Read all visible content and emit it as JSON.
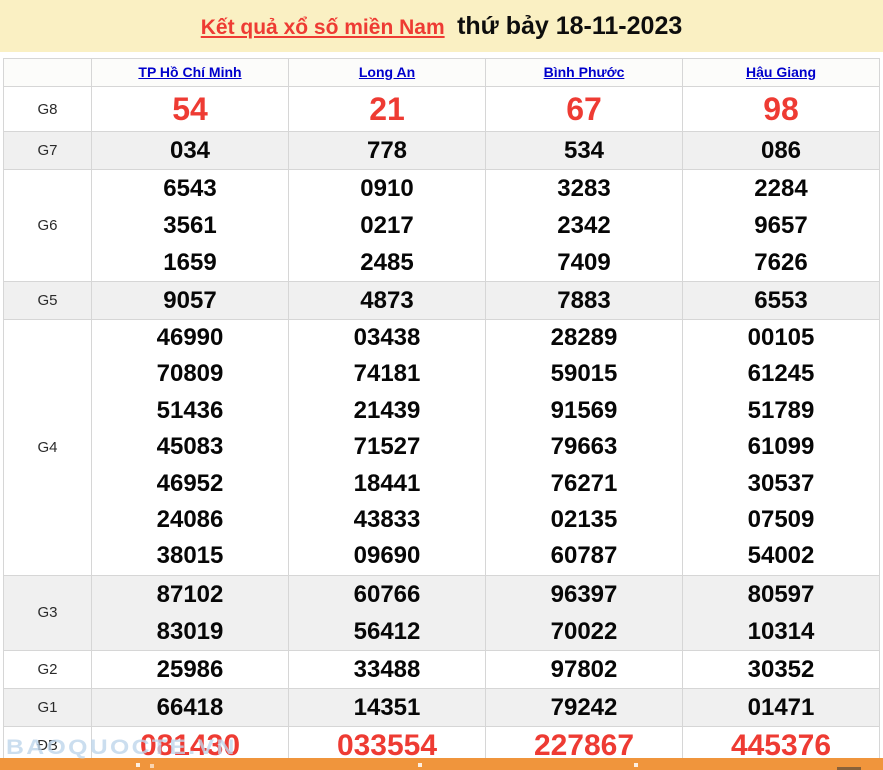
{
  "banner": {
    "title_link": "Kết quả xổ số miền Nam",
    "title_date": "thứ bảy 18-11-2023"
  },
  "table": {
    "columns": [
      "TP Hồ Chí Minh",
      "Long An",
      "Bình Phước",
      "Hậu Giang"
    ],
    "rows": [
      {
        "key": "G8",
        "label": "G8",
        "values": [
          [
            "54"
          ],
          [
            "21"
          ],
          [
            "67"
          ],
          [
            "98"
          ]
        ]
      },
      {
        "key": "G7",
        "label": "G7",
        "values": [
          [
            "034"
          ],
          [
            "778"
          ],
          [
            "534"
          ],
          [
            "086"
          ]
        ]
      },
      {
        "key": "G6",
        "label": "G6",
        "values": [
          [
            "6543",
            "3561",
            "1659"
          ],
          [
            "0910",
            "0217",
            "2485"
          ],
          [
            "3283",
            "2342",
            "7409"
          ],
          [
            "2284",
            "9657",
            "7626"
          ]
        ]
      },
      {
        "key": "G5",
        "label": "G5",
        "values": [
          [
            "9057"
          ],
          [
            "4873"
          ],
          [
            "7883"
          ],
          [
            "6553"
          ]
        ]
      },
      {
        "key": "G4",
        "label": "G4",
        "values": [
          [
            "46990",
            "70809",
            "51436",
            "45083",
            "46952",
            "24086",
            "38015"
          ],
          [
            "03438",
            "74181",
            "21439",
            "71527",
            "18441",
            "43833",
            "09690"
          ],
          [
            "28289",
            "59015",
            "91569",
            "79663",
            "76271",
            "02135",
            "60787"
          ],
          [
            "00105",
            "61245",
            "51789",
            "61099",
            "30537",
            "07509",
            "54002"
          ]
        ]
      },
      {
        "key": "G3",
        "label": "G3",
        "values": [
          [
            "87102",
            "83019"
          ],
          [
            "60766",
            "56412"
          ],
          [
            "96397",
            "70022"
          ],
          [
            "80597",
            "10314"
          ]
        ]
      },
      {
        "key": "G2",
        "label": "G2",
        "values": [
          [
            "25986"
          ],
          [
            "33488"
          ],
          [
            "97802"
          ],
          [
            "30352"
          ]
        ]
      },
      {
        "key": "G1",
        "label": "G1",
        "values": [
          [
            "66418"
          ],
          [
            "14351"
          ],
          [
            "79242"
          ],
          [
            "01471"
          ]
        ]
      },
      {
        "key": "DB",
        "label": "ĐB",
        "values": [
          [
            "081430"
          ],
          [
            "033554"
          ],
          [
            "227867"
          ],
          [
            "445376"
          ]
        ]
      }
    ]
  },
  "watermark": "BAOQUOCTE.VN",
  "colors": {
    "red": "#ee3b33",
    "link_blue": "#0000cc",
    "banner_yellow": "#FAF0C3",
    "orange": "#F0953C",
    "stripe": "#f0f0f0",
    "border": "#d6d6d6",
    "watermark": "#BFD6EC"
  }
}
